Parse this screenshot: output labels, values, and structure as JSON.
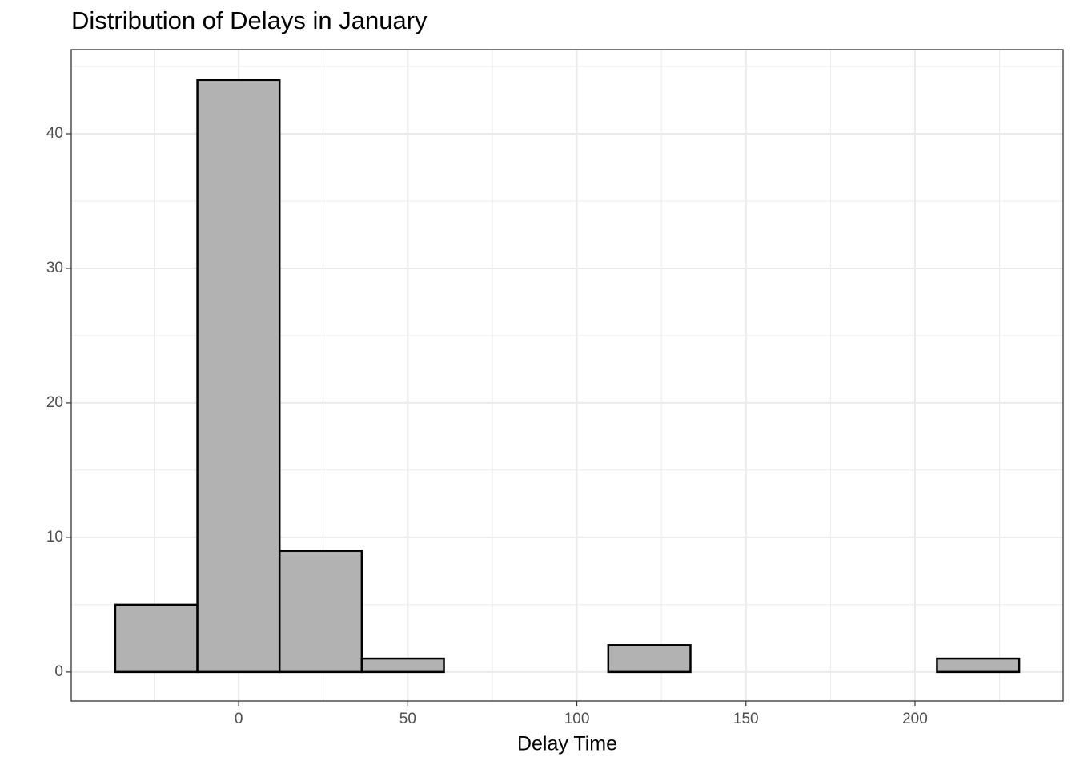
{
  "chart_data": {
    "type": "histogram",
    "title": "Distribution of Delays in January",
    "x_label": "Delay Time",
    "bins": [
      -36.5,
      -12.2,
      12.1,
      36.4,
      60.7,
      85.0,
      109.3,
      133.6,
      157.9,
      182.2,
      206.5,
      230.8
    ],
    "values": [
      5,
      44,
      9,
      1,
      0,
      0,
      2,
      0,
      0,
      0,
      1
    ],
    "color": "#b2b2b2",
    "edge_color": "#000000",
    "xlim": [
      -49.5,
      243.8
    ],
    "xticks": [
      0,
      50,
      100,
      150,
      200
    ],
    "ylim": [
      -2.15,
      46.25
    ],
    "yticks": [
      0,
      10,
      20,
      30,
      40
    ],
    "grid": true
  }
}
